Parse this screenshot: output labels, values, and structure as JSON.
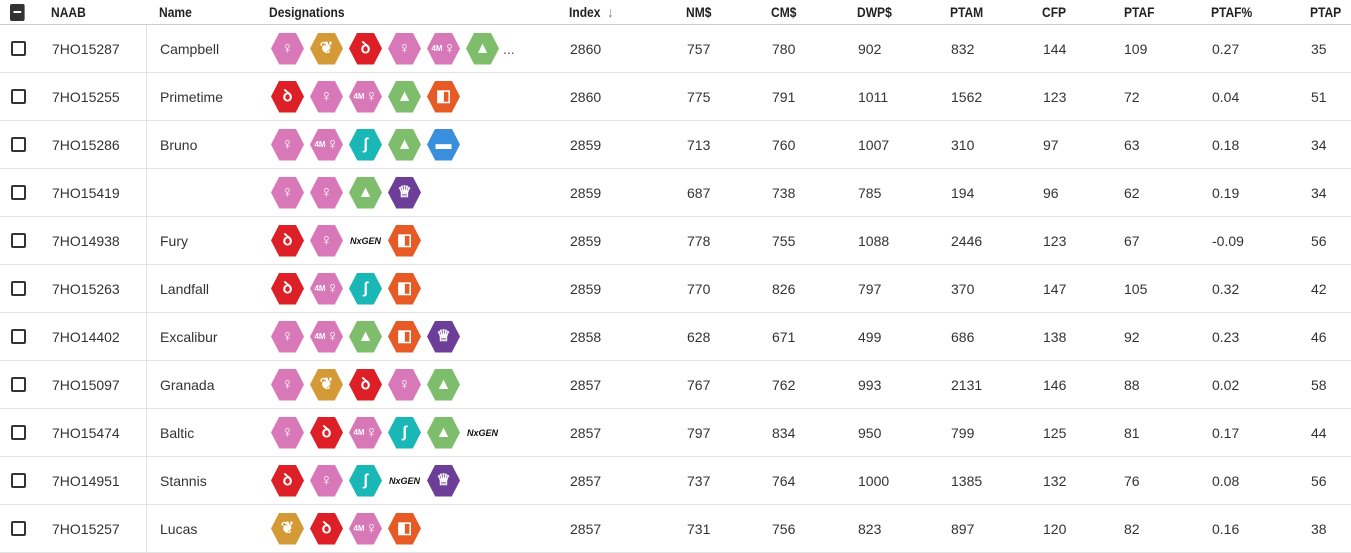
{
  "columns": {
    "naab": "NAAB",
    "name": "Name",
    "designations": "Designations",
    "index": "Index",
    "nm": "NM$",
    "cm": "CM$",
    "dwp": "DWP$",
    "ptam": "PTAM",
    "cfp": "CFP",
    "ptaf": "PTAF",
    "ptafp": "PTAF%",
    "ptap": "PTAP"
  },
  "sort": {
    "column": "Index",
    "direction": "descending",
    "icon": "arrow-down-icon"
  },
  "colors": {
    "pink": "#d978b8",
    "red": "#dd2027",
    "gold": "#d39a36",
    "green": "#7dbd6c",
    "orange": "#e65a26",
    "teal": "#19b7b6",
    "blue": "#3a8fdc",
    "purple": "#6c3e98"
  },
  "badge_types": {
    "female-fertility": {
      "color": "pink",
      "glyph": "♀"
    },
    "female": {
      "color": "pink",
      "glyph": "♀"
    },
    "4m": {
      "color": "pink",
      "glyph": "4M♀",
      "text": "4M"
    },
    "corn": {
      "color": "gold",
      "glyph": "❦"
    },
    "rumen": {
      "color": "red",
      "glyph": "ꝺ"
    },
    "genomic": {
      "color": "teal",
      "glyph": "ʃ"
    },
    "cow": {
      "color": "green",
      "glyph": "▲"
    },
    "a2": {
      "color": "orange",
      "glyph": "◧"
    },
    "feet": {
      "color": "blue",
      "glyph": "▬"
    },
    "trophy": {
      "color": "purple",
      "glyph": "♕"
    },
    "ngen": {
      "text": "NxGEN"
    }
  },
  "rows": [
    {
      "naab": "7HO15287",
      "name": "Campbell",
      "badges": [
        "female-fertility",
        "corn",
        "rumen",
        "female",
        "4m",
        "cow"
      ],
      "more": "...",
      "index": "2860",
      "nm": "757",
      "cm": "780",
      "dwp": "902",
      "ptam": "832",
      "cfp": "144",
      "ptaf": "109",
      "ptafp": "0.27",
      "ptap": "35"
    },
    {
      "naab": "7HO15255",
      "name": "Primetime",
      "badges": [
        "rumen",
        "female",
        "4m",
        "cow",
        "a2"
      ],
      "more": "",
      "index": "2860",
      "nm": "775",
      "cm": "791",
      "dwp": "1011",
      "ptam": "1562",
      "cfp": "123",
      "ptaf": "72",
      "ptafp": "0.04",
      "ptap": "51"
    },
    {
      "naab": "7HO15286",
      "name": "Bruno",
      "badges": [
        "female",
        "4m",
        "genomic",
        "cow",
        "feet"
      ],
      "more": "",
      "index": "2859",
      "nm": "713",
      "cm": "760",
      "dwp": "1007",
      "ptam": "310",
      "cfp": "97",
      "ptaf": "63",
      "ptafp": "0.18",
      "ptap": "34"
    },
    {
      "naab": "7HO15419",
      "name": "",
      "badges": [
        "female-fertility",
        "female",
        "cow",
        "trophy"
      ],
      "more": "",
      "index": "2859",
      "nm": "687",
      "cm": "738",
      "dwp": "785",
      "ptam": "194",
      "cfp": "96",
      "ptaf": "62",
      "ptafp": "0.19",
      "ptap": "34"
    },
    {
      "naab": "7HO14938",
      "name": "Fury",
      "badges": [
        "rumen",
        "female",
        "ngen",
        "a2"
      ],
      "more": "",
      "index": "2859",
      "nm": "778",
      "cm": "755",
      "dwp": "1088",
      "ptam": "2446",
      "cfp": "123",
      "ptaf": "67",
      "ptafp": "-0.09",
      "ptap": "56"
    },
    {
      "naab": "7HO15263",
      "name": "Landfall",
      "badges": [
        "rumen",
        "4m",
        "genomic",
        "a2"
      ],
      "more": "",
      "index": "2859",
      "nm": "770",
      "cm": "826",
      "dwp": "797",
      "ptam": "370",
      "cfp": "147",
      "ptaf": "105",
      "ptafp": "0.32",
      "ptap": "42"
    },
    {
      "naab": "7HO14402",
      "name": "Excalibur",
      "badges": [
        "female-fertility",
        "4m",
        "cow",
        "a2",
        "trophy"
      ],
      "more": "",
      "index": "2858",
      "nm": "628",
      "cm": "671",
      "dwp": "499",
      "ptam": "686",
      "cfp": "138",
      "ptaf": "92",
      "ptafp": "0.23",
      "ptap": "46"
    },
    {
      "naab": "7HO15097",
      "name": "Granada",
      "badges": [
        "female-fertility",
        "corn",
        "rumen",
        "female",
        "cow"
      ],
      "more": "",
      "index": "2857",
      "nm": "767",
      "cm": "762",
      "dwp": "993",
      "ptam": "2131",
      "cfp": "146",
      "ptaf": "88",
      "ptafp": "0.02",
      "ptap": "58"
    },
    {
      "naab": "7HO15474",
      "name": "Baltic",
      "badges": [
        "female-fertility",
        "rumen",
        "4m",
        "genomic",
        "cow",
        "ngen"
      ],
      "more": "",
      "index": "2857",
      "nm": "797",
      "cm": "834",
      "dwp": "950",
      "ptam": "799",
      "cfp": "125",
      "ptaf": "81",
      "ptafp": "0.17",
      "ptap": "44"
    },
    {
      "naab": "7HO14951",
      "name": "Stannis",
      "badges": [
        "rumen",
        "female",
        "genomic",
        "ngen",
        "trophy"
      ],
      "more": "",
      "index": "2857",
      "nm": "737",
      "cm": "764",
      "dwp": "1000",
      "ptam": "1385",
      "cfp": "132",
      "ptaf": "76",
      "ptafp": "0.08",
      "ptap": "56"
    },
    {
      "naab": "7HO15257",
      "name": "Lucas",
      "badges": [
        "corn",
        "rumen",
        "4m",
        "a2"
      ],
      "more": "",
      "index": "2857",
      "nm": "731",
      "cm": "756",
      "dwp": "823",
      "ptam": "897",
      "cfp": "120",
      "ptaf": "82",
      "ptafp": "0.16",
      "ptap": "38"
    }
  ]
}
